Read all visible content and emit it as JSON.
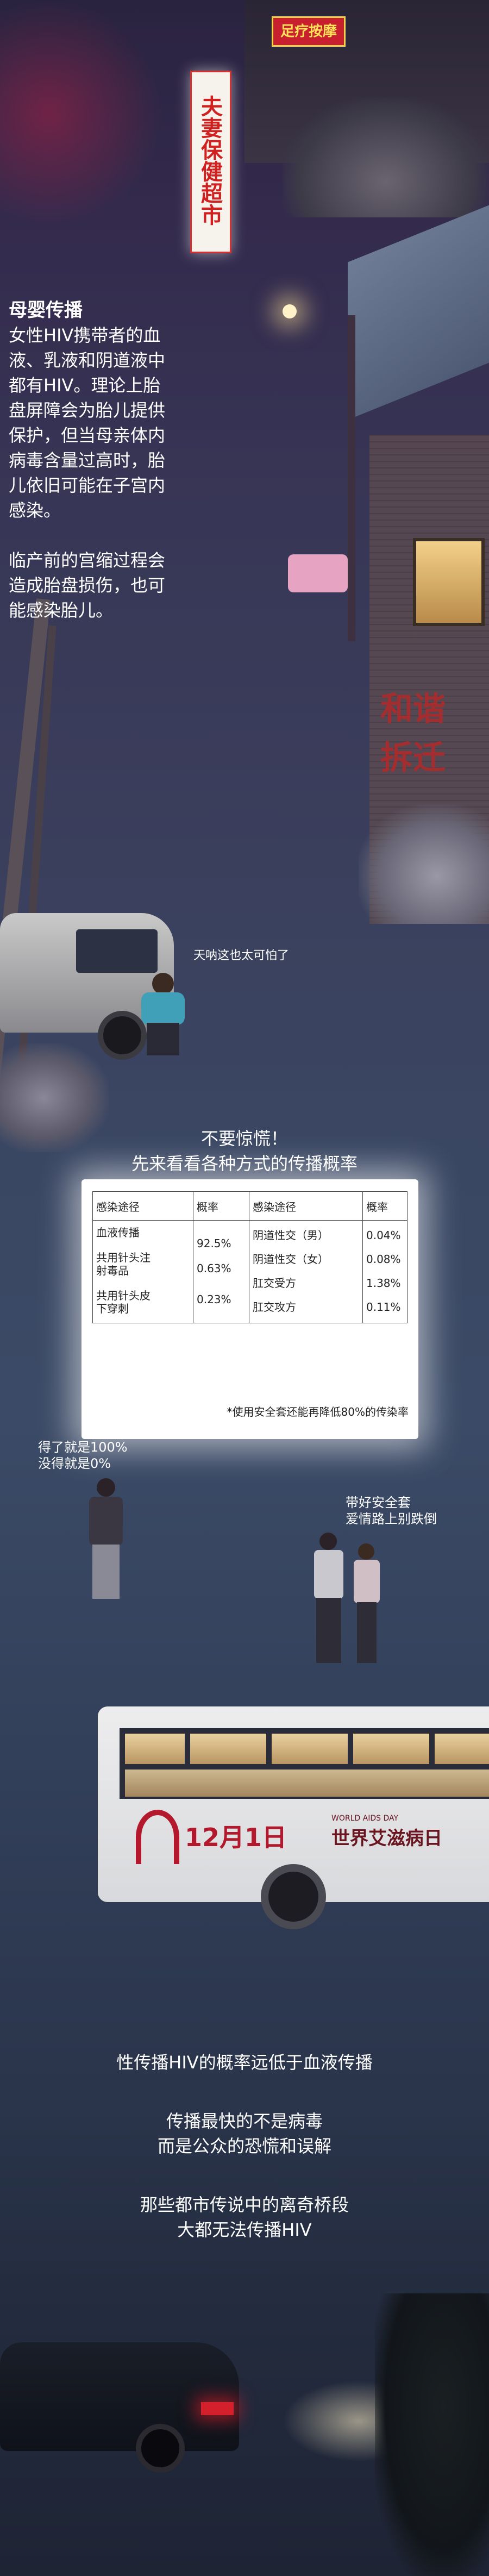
{
  "scene_signs": {
    "shop_top": "足疗按摩",
    "vertical_sign": "夫妻保健超市",
    "wall_writing": "和谐 拆迁"
  },
  "section_mother": {
    "title": "母婴传播",
    "paragraph1": "女性HIV携带者的血液、乳液和阴道液中都有HIV。理论上胎盘屏障会为胎儿提供保护，但当母亲体内病毒含量过高时，胎儿依旧可能在子宫内感染。",
    "paragraph2": "临产前的宫缩过程会造成胎盘损伤，也可能感染胎儿。"
  },
  "bubble_scared": "天呐这也太可怕了",
  "intro_line1": "不要惊慌！",
  "intro_line2": "先来看看各种方式的传播概率",
  "table": {
    "headers": [
      "感染途径",
      "概率",
      "感染途径",
      "概率"
    ],
    "left_rows": [
      {
        "route": "血液传播",
        "rate": "92.5%"
      },
      {
        "route": "共用针头注射毒品",
        "rate": "0.63%"
      },
      {
        "route": "共用针头皮下穿刺",
        "rate": "0.23%"
      }
    ],
    "right_rows": [
      {
        "route": "阴道性交（男）",
        "rate": "0.04%"
      },
      {
        "route": "阴道性交（女）",
        "rate": "0.08%"
      },
      {
        "route": "肛交受方",
        "rate": "1.38%"
      },
      {
        "route": "肛交攻方",
        "rate": "0.11%"
      }
    ],
    "footnote": "*使用安全套还能再降低80%的传染率"
  },
  "bubble_man_line1": "得了就是100%",
  "bubble_man_line2": "没得就是0%",
  "bubble_couple_line1": "带好安全套",
  "bubble_couple_line2": "爱情路上别跌倒",
  "bus": {
    "date": "12月1日",
    "label": "世界艾滋病日",
    "small_text": "WORLD AIDS DAY"
  },
  "closing": {
    "line1": "性传播HIV的概率远低于血液传播",
    "line2": "传播最快的不是病毒",
    "line3": "而是公众的恐慌和误解",
    "line4": "那些都市传说中的离奇桥段",
    "line5": "大都无法传播HIV"
  }
}
